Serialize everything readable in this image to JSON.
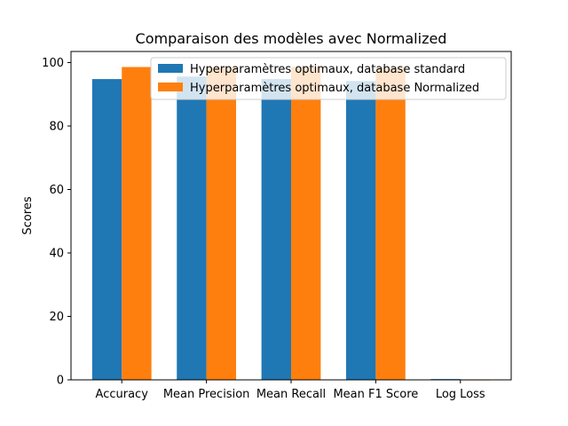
{
  "chart_data": {
    "type": "bar",
    "title": "Comparaison des modèles avec Normalized",
    "xlabel": "",
    "ylabel": "Scores",
    "categories": [
      "Accuracy",
      "Mean Precision",
      "Mean Recall",
      "Mean F1 Score",
      "Log Loss"
    ],
    "series": [
      {
        "name": "Hyperparamètres optimaux, database standard",
        "values": [
          94.8,
          95.6,
          94.8,
          94.2,
          0.25
        ],
        "color": "#1f77b4"
      },
      {
        "name": "Hyperparamètres optimaux, database Normalized",
        "values": [
          98.6,
          98.6,
          98.6,
          98.5,
          0.05
        ],
        "color": "#ff7f0e"
      }
    ],
    "ylim": [
      0,
      103.5
    ],
    "yticks": [
      0,
      20,
      40,
      60,
      80,
      100
    ],
    "grid": false,
    "legend": "top-right"
  }
}
